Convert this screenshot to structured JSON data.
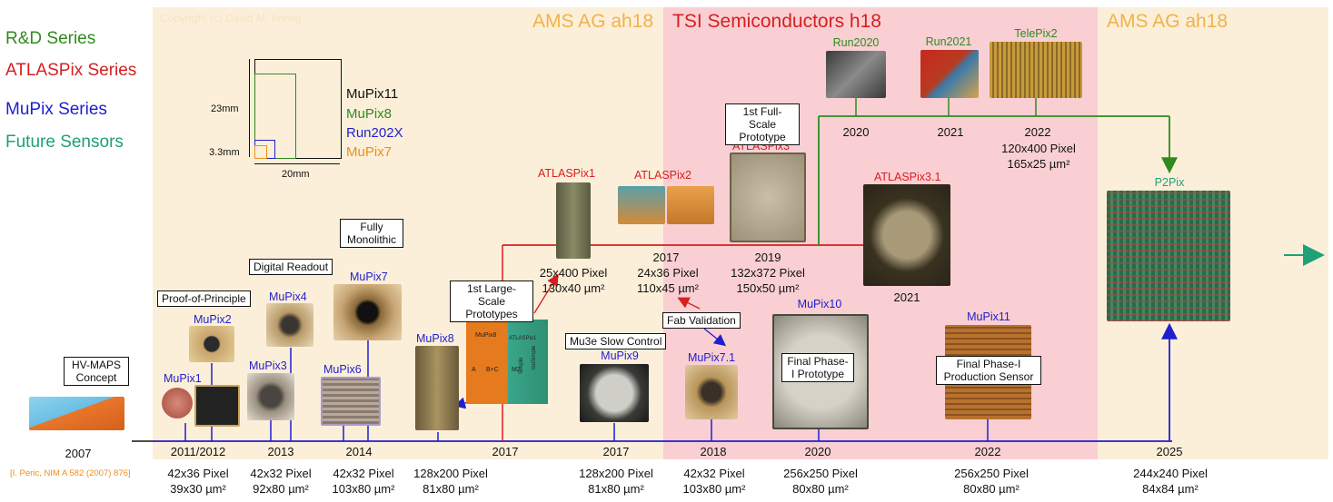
{
  "legend": {
    "rd": "R&D Series",
    "atlas": "ATLASPix Series",
    "mupix": "MuPix Series",
    "future": "Future Sensors",
    "colors": {
      "rd": "#2e8b1e",
      "atlas": "#d61f1f",
      "mupix": "#1f1fcf",
      "future": "#1fa07a"
    }
  },
  "copyright": "Copyright (c) David M. Immig",
  "bands": {
    "ams1": "AMS AG ah18",
    "tsi": "TSI Semiconductors h18",
    "ams2": "AMS AG ah18"
  },
  "size_diagram": {
    "names": [
      "MuPix11",
      "MuPix8",
      "Run202X",
      "MuPix7"
    ],
    "h1": "23mm",
    "h2": "3.3mm",
    "w": "20mm"
  },
  "chips": {
    "mupix1": "MuPix1",
    "mupix2": "MuPix2",
    "mupix3": "MuPix3",
    "mupix4": "MuPix4",
    "mupix6": "MuPix6",
    "mupix7": "MuPix7",
    "mupix8": "MuPix8",
    "mupix9": "MuPix9",
    "mupix71": "MuPix7.1",
    "mupix10": "MuPix10",
    "mupix11": "MuPix11",
    "atlaspix1": "ATLASPix1",
    "atlaspix2": "ATLASPix2",
    "atlaspix3": "ATLASPix3",
    "atlaspix31": "ATLASPix3.1",
    "run2020": "Run2020",
    "run2021": "Run2021",
    "telepix2": "TelePix2",
    "p2pix": "P2Pix"
  },
  "chip_inner": {
    "a": "A",
    "bc": "B+C",
    "m2": "M2",
    "mupix8": "MuPix8",
    "atlaspix1": "ATLASPix1",
    "simple": "Simple",
    "isosimple": "IsoSimple"
  },
  "callouts": {
    "hvmaps": "HV-MAPS Concept",
    "proof": "Proof-of-Principle",
    "digital": "Digital Readout",
    "monolithic": "Fully Monolithic",
    "largescale": "1st Large-Scale Prototypes",
    "fullscale": "1st Full-Scale Prototype",
    "slowcontrol": "Mu3e Slow Control",
    "fab": "Fab Validation",
    "final1": "Final Phase-I Prototype",
    "final2": "Final Phase-I Production Sensor"
  },
  "years": {
    "y2007a": "2007",
    "y2011": "2011/2012",
    "y2013": "2013",
    "y2014": "2014",
    "y2017a": "2017",
    "y2017b": "2017",
    "y2018": "2018",
    "y2020b": "2020",
    "y2022b": "2022",
    "y2025": "2025",
    "y2017r": "2017",
    "y2019r": "2019",
    "y2021r": "2021",
    "y2020t": "2020",
    "y2021t": "2021",
    "y2022t": "2022"
  },
  "specs": {
    "s1": [
      "42x36 Pixel",
      "39x30 µm²"
    ],
    "s2": [
      "42x32 Pixel",
      "92x80 µm²"
    ],
    "s3": [
      "42x32 Pixel",
      "103x80 µm²"
    ],
    "s4": [
      "128x200 Pixel",
      "81x80 µm²"
    ],
    "s5": [
      "128x200 Pixel",
      "81x80 µm²"
    ],
    "s6": [
      "42x32 Pixel",
      "103x80 µm²"
    ],
    "s7": [
      "256x250 Pixel",
      "80x80 µm²"
    ],
    "s8": [
      "256x250 Pixel",
      "80x80 µm²"
    ],
    "s9": [
      "244x240 Pixel",
      "84x84 µm²"
    ],
    "r1": [
      "25x400 Pixel",
      "130x40 µm²"
    ],
    "r2": [
      "24x36 Pixel",
      "110x45 µm²"
    ],
    "r3": [
      "132x372 Pixel",
      "150x50 µm²"
    ],
    "t1": [
      "120x400 Pixel",
      "165x25 µm²"
    ]
  },
  "reference": "[I. Peric, NIM A 582 (2007) 876]"
}
